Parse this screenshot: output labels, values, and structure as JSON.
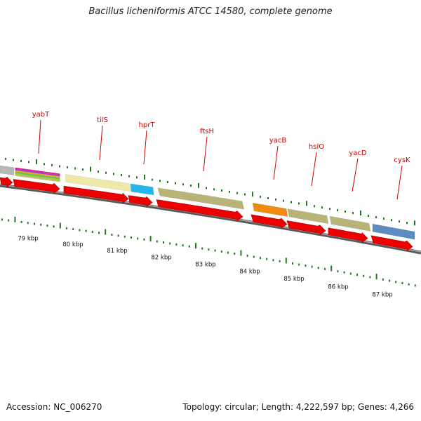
{
  "title": "Bacillus licheniformis ATCC 14580, complete genome",
  "footer": {
    "accession": "Accession: NC_006270",
    "summary": "Topology: circular; Length: 4,222,597 bp; Genes: 4,266"
  },
  "colors": {
    "gene_arrow": "#ee0000",
    "label": "#cc0000",
    "tick": "#1f7a1f",
    "backbone": "#888888"
  },
  "scale_labels": [
    "79 kbp",
    "80 kbp",
    "81 kbp",
    "82 kbp",
    "83 kbp",
    "84 kbp",
    "85 kbp",
    "86 kbp",
    "87 kbp"
  ],
  "gene_labels": [
    "yabT",
    "tilS",
    "hprT",
    "ftsH",
    "yacB",
    "hslO",
    "yacD",
    "cysK"
  ],
  "features": [
    {
      "color": "#b8b8b8"
    },
    {
      "color": "multicolor"
    },
    {
      "color": "#eee9a8"
    },
    {
      "color": "#22b5ee"
    },
    {
      "color": "#b8b478"
    },
    {
      "color": "#f08a10"
    },
    {
      "color": "#b8b478"
    },
    {
      "color": "#b8b478"
    },
    {
      "color": "#5b8dc0"
    }
  ]
}
